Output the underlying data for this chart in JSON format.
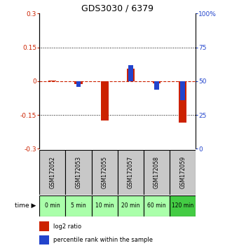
{
  "title": "GDS3030 / 6379",
  "samples": [
    "GSM172052",
    "GSM172053",
    "GSM172055",
    "GSM172057",
    "GSM172058",
    "GSM172059"
  ],
  "time_labels": [
    "0 min",
    "5 min",
    "10 min",
    "20 min",
    "60 min",
    "120 min"
  ],
  "log2_ratio": [
    0.002,
    -0.012,
    -0.175,
    0.055,
    -0.008,
    -0.185
  ],
  "percentile": [
    50,
    46,
    50,
    62,
    44,
    36
  ],
  "ylim_left": [
    -0.3,
    0.3
  ],
  "ylim_right": [
    0,
    100
  ],
  "yticks_left": [
    -0.3,
    -0.15,
    0,
    0.15,
    0.3
  ],
  "yticks_right": [
    0,
    25,
    50,
    75,
    100
  ],
  "ytick_labels_left": [
    "-0.3",
    "-0.15",
    "0",
    "0.15",
    "0.3"
  ],
  "ytick_labels_right": [
    "0",
    "25",
    "50",
    "75",
    "100%"
  ],
  "hlines_dotted": [
    -0.15,
    0.15
  ],
  "hline_dashed": 0,
  "red_bar_width": 0.3,
  "blue_bar_width": 0.18,
  "red_color": "#cc2200",
  "blue_color": "#2244cc",
  "bg_color_samples": "#c8c8c8",
  "time_colors": [
    "#aaffaa",
    "#aaffaa",
    "#aaffaa",
    "#aaffaa",
    "#aaffaa",
    "#44cc44"
  ],
  "legend_red_label": "log2 ratio",
  "legend_blue_label": "percentile rank within the sample",
  "time_header": "time",
  "title_fontsize": 9,
  "tick_fontsize": 6.5,
  "sample_fontsize": 5.5,
  "time_fontsize": 5.5,
  "legend_fontsize": 6
}
